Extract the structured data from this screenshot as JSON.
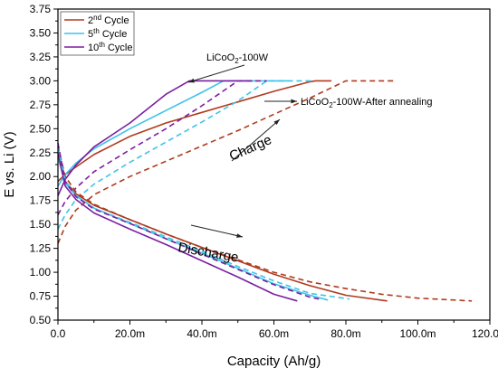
{
  "chart_data": {
    "type": "line",
    "xlabel": "Capacity (Ah/g)",
    "ylabel": "E vs. Li (V)",
    "xlim": [
      0,
      0.12
    ],
    "ylim": [
      0.5,
      3.75
    ],
    "x_ticks": [
      0,
      0.02,
      0.04,
      0.06,
      0.08,
      0.1,
      0.12
    ],
    "x_tick_labels": [
      "0.0",
      "20.0m",
      "40.0m",
      "60.0m",
      "80.0m",
      "100.0m",
      "120.0m"
    ],
    "y_ticks": [
      0.5,
      0.75,
      1.0,
      1.25,
      1.5,
      1.75,
      2.0,
      2.25,
      2.5,
      2.75,
      3.0,
      3.25,
      3.5,
      3.75
    ],
    "y_tick_labels": [
      "0.50",
      "0.75",
      "1.00",
      "1.25",
      "1.50",
      "1.75",
      "2.00",
      "2.25",
      "2.50",
      "2.75",
      "3.00",
      "3.25",
      "3.50",
      "3.75"
    ],
    "grid": false,
    "legend": {
      "placement": "top-left",
      "entries": [
        {
          "base": "2",
          "sup": "nd",
          "rest": " Cycle",
          "color": "#b03a1e"
        },
        {
          "base": "5",
          "sup": "th",
          "rest": " Cycle",
          "color": "#3ec3e8"
        },
        {
          "base": "10",
          "sup": "th",
          "rest": " Cycle",
          "color": "#7a1fa0"
        }
      ]
    },
    "series": [
      {
        "color": "#b03a1e",
        "style": "solid",
        "phase": "charge",
        "points": [
          [
            0.0,
            1.95
          ],
          [
            0.002,
            2.02
          ],
          [
            0.005,
            2.1
          ],
          [
            0.01,
            2.23
          ],
          [
            0.02,
            2.42
          ],
          [
            0.03,
            2.56
          ],
          [
            0.04,
            2.67
          ],
          [
            0.05,
            2.78
          ],
          [
            0.06,
            2.89
          ],
          [
            0.07,
            2.99
          ],
          [
            0.0715,
            3.0
          ],
          [
            0.076,
            3.0
          ]
        ]
      },
      {
        "color": "#3ec3e8",
        "style": "solid",
        "phase": "charge",
        "points": [
          [
            0.0,
            1.9
          ],
          [
            0.002,
            2.02
          ],
          [
            0.005,
            2.14
          ],
          [
            0.01,
            2.29
          ],
          [
            0.02,
            2.5
          ],
          [
            0.03,
            2.69
          ],
          [
            0.04,
            2.88
          ],
          [
            0.046,
            3.0
          ],
          [
            0.064,
            3.0
          ]
        ]
      },
      {
        "color": "#7a1fa0",
        "style": "solid",
        "phase": "charge",
        "points": [
          [
            0.0,
            1.8
          ],
          [
            0.002,
            1.97
          ],
          [
            0.005,
            2.12
          ],
          [
            0.01,
            2.31
          ],
          [
            0.02,
            2.56
          ],
          [
            0.03,
            2.86
          ],
          [
            0.0365,
            3.0
          ],
          [
            0.054,
            3.0
          ]
        ]
      },
      {
        "color": "#b03a1e",
        "style": "dashed",
        "phase": "charge",
        "points": [
          [
            0.0,
            1.3
          ],
          [
            0.002,
            1.48
          ],
          [
            0.005,
            1.65
          ],
          [
            0.01,
            1.81
          ],
          [
            0.02,
            2.0
          ],
          [
            0.03,
            2.16
          ],
          [
            0.04,
            2.32
          ],
          [
            0.05,
            2.48
          ],
          [
            0.06,
            2.65
          ],
          [
            0.07,
            2.82
          ],
          [
            0.08,
            3.0
          ],
          [
            0.0935,
            3.0
          ]
        ]
      },
      {
        "color": "#3ec3e8",
        "style": "dashed",
        "phase": "charge",
        "points": [
          [
            0.0,
            1.45
          ],
          [
            0.002,
            1.6
          ],
          [
            0.005,
            1.76
          ],
          [
            0.01,
            1.92
          ],
          [
            0.02,
            2.15
          ],
          [
            0.03,
            2.36
          ],
          [
            0.04,
            2.57
          ],
          [
            0.05,
            2.79
          ],
          [
            0.058,
            3.0
          ],
          [
            0.071,
            3.0
          ]
        ]
      },
      {
        "color": "#7a1fa0",
        "style": "dashed",
        "phase": "charge",
        "points": [
          [
            0.0,
            1.6
          ],
          [
            0.002,
            1.74
          ],
          [
            0.005,
            1.88
          ],
          [
            0.01,
            2.05
          ],
          [
            0.02,
            2.28
          ],
          [
            0.03,
            2.5
          ],
          [
            0.04,
            2.74
          ],
          [
            0.05,
            3.0
          ],
          [
            0.058,
            3.0
          ]
        ]
      },
      {
        "color": "#b03a1e",
        "style": "solid",
        "phase": "discharge",
        "points": [
          [
            0.0,
            2.22
          ],
          [
            0.002,
            1.95
          ],
          [
            0.005,
            1.82
          ],
          [
            0.01,
            1.7
          ],
          [
            0.02,
            1.55
          ],
          [
            0.03,
            1.4
          ],
          [
            0.04,
            1.26
          ],
          [
            0.05,
            1.12
          ],
          [
            0.06,
            0.98
          ],
          [
            0.07,
            0.86
          ],
          [
            0.08,
            0.76
          ],
          [
            0.0915,
            0.7
          ]
        ]
      },
      {
        "color": "#3ec3e8",
        "style": "solid",
        "phase": "discharge",
        "points": [
          [
            0.0,
            2.2
          ],
          [
            0.002,
            1.93
          ],
          [
            0.005,
            1.8
          ],
          [
            0.01,
            1.67
          ],
          [
            0.02,
            1.51
          ],
          [
            0.03,
            1.35
          ],
          [
            0.04,
            1.2
          ],
          [
            0.05,
            1.04
          ],
          [
            0.06,
            0.88
          ],
          [
            0.07,
            0.76
          ],
          [
            0.075,
            0.71
          ]
        ]
      },
      {
        "color": "#7a1fa0",
        "style": "solid",
        "phase": "discharge",
        "points": [
          [
            0.0,
            2.25
          ],
          [
            0.002,
            1.9
          ],
          [
            0.005,
            1.76
          ],
          [
            0.01,
            1.62
          ],
          [
            0.02,
            1.45
          ],
          [
            0.03,
            1.29
          ],
          [
            0.04,
            1.12
          ],
          [
            0.05,
            0.95
          ],
          [
            0.06,
            0.77
          ],
          [
            0.0665,
            0.7
          ]
        ]
      },
      {
        "color": "#b03a1e",
        "style": "dashed",
        "phase": "discharge",
        "points": [
          [
            0.0,
            2.32
          ],
          [
            0.002,
            2.0
          ],
          [
            0.005,
            1.84
          ],
          [
            0.01,
            1.71
          ],
          [
            0.02,
            1.55
          ],
          [
            0.03,
            1.4
          ],
          [
            0.04,
            1.26
          ],
          [
            0.05,
            1.13
          ],
          [
            0.06,
            1.0
          ],
          [
            0.07,
            0.9
          ],
          [
            0.08,
            0.83
          ],
          [
            0.09,
            0.77
          ],
          [
            0.1,
            0.73
          ],
          [
            0.115,
            0.7
          ]
        ]
      },
      {
        "color": "#3ec3e8",
        "style": "dashed",
        "phase": "discharge",
        "points": [
          [
            0.0,
            2.3
          ],
          [
            0.002,
            1.96
          ],
          [
            0.005,
            1.8
          ],
          [
            0.01,
            1.67
          ],
          [
            0.02,
            1.52
          ],
          [
            0.03,
            1.37
          ],
          [
            0.04,
            1.22
          ],
          [
            0.05,
            1.06
          ],
          [
            0.06,
            0.91
          ],
          [
            0.07,
            0.78
          ],
          [
            0.081,
            0.72
          ]
        ]
      },
      {
        "color": "#7a1fa0",
        "style": "dashed",
        "phase": "discharge",
        "points": [
          [
            0.0,
            2.35
          ],
          [
            0.002,
            1.95
          ],
          [
            0.005,
            1.79
          ],
          [
            0.01,
            1.66
          ],
          [
            0.02,
            1.51
          ],
          [
            0.03,
            1.35
          ],
          [
            0.04,
            1.19
          ],
          [
            0.05,
            1.03
          ],
          [
            0.06,
            0.87
          ],
          [
            0.07,
            0.74
          ],
          [
            0.0725,
            0.72
          ]
        ]
      }
    ],
    "annotations": [
      {
        "id": "licoo2",
        "base": "LiCoO",
        "sub": "2",
        "rest": "-100W"
      },
      {
        "id": "annealed",
        "base": "LiCoO",
        "sub": "2",
        "rest": "-100W-After annealing"
      },
      {
        "id": "charge",
        "text": "Charge"
      },
      {
        "id": "discharge",
        "text": "Discharge"
      }
    ]
  }
}
